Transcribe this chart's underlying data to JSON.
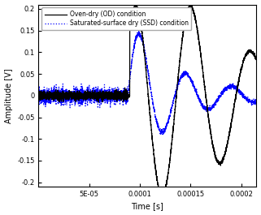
{
  "title": "",
  "xlabel": "Time [s]",
  "ylabel": "Amplitude [V]",
  "xlim": [
    0,
    0.000215
  ],
  "ylim": [
    -0.21,
    0.21
  ],
  "yticks": [
    -0.2,
    -0.15,
    -0.1,
    -0.05,
    0,
    0.05,
    0.1,
    0.15,
    0.2
  ],
  "xticks": [
    5e-05,
    0.0001,
    0.00015,
    0.0002
  ],
  "xticklabels": [
    "5E-05",
    "0.0001",
    "0.00015",
    "0.0002"
  ],
  "legend_od": "Oven-dry (OD) condition",
  "legend_ssd": "Saturated-surface dry (SSD) condition",
  "line_od_color": "black",
  "line_ssd_color": "blue",
  "background_color": "#ffffff"
}
